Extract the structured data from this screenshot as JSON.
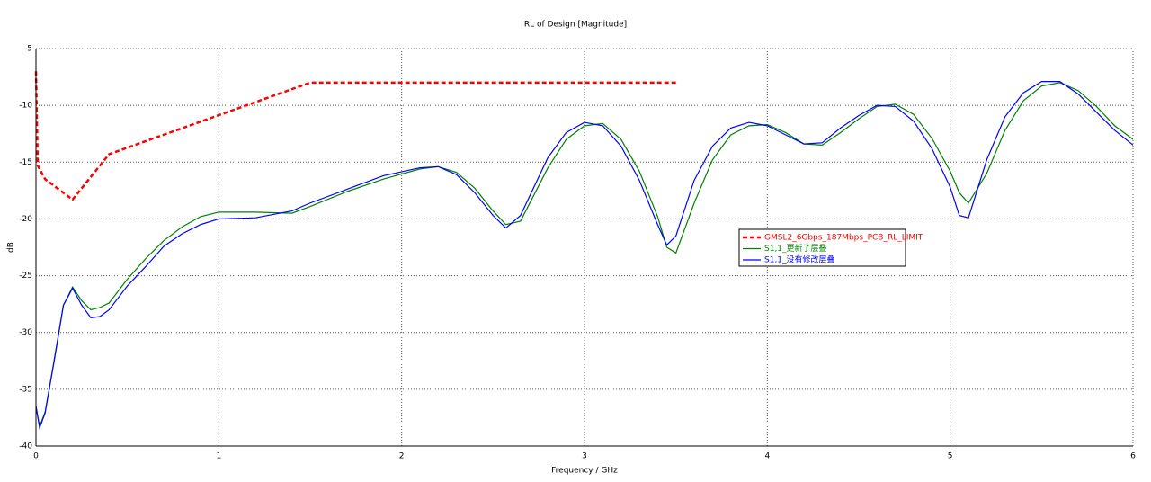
{
  "chart_data": {
    "type": "line",
    "title": "RL of Design [Magnitude]",
    "x_label": "Frequency / GHz",
    "y_label": "dB",
    "x": [
      0,
      0.02,
      0.05,
      0.1,
      0.15,
      0.2,
      0.25,
      0.3,
      0.35,
      0.4,
      0.5,
      0.6,
      0.7,
      0.8,
      0.9,
      1.0,
      1.2,
      1.4,
      1.5,
      1.7,
      1.9,
      2.1,
      2.2,
      2.3,
      2.4,
      2.5,
      2.57,
      2.65,
      2.8,
      2.9,
      3.0,
      3.1,
      3.2,
      3.3,
      3.4,
      3.45,
      3.5,
      3.6,
      3.7,
      3.8,
      3.9,
      4.0,
      4.1,
      4.2,
      4.3,
      4.4,
      4.5,
      4.6,
      4.7,
      4.8,
      4.9,
      5.0,
      5.05,
      5.1,
      5.2,
      5.3,
      5.4,
      5.5,
      5.6,
      5.7,
      5.8,
      5.9,
      6.0
    ],
    "series": [
      {
        "name": "GMSL2_6Gbps_187Mbps_PCB_RL_LIMIT",
        "color": "#ff0000",
        "line_style": "dashed",
        "x": [
          0,
          0.01,
          0.05,
          0.2,
          0.4,
          1.5,
          3.5
        ],
        "values": [
          -7,
          -15.3,
          -16.5,
          -18.3,
          -14.3,
          -8,
          -8
        ]
      },
      {
        "name": "S1,1_更新了层叠",
        "color": "#008000",
        "line_style": "solid",
        "values": [
          -36.5,
          -38.3,
          -37,
          -32.5,
          -27.6,
          -26.0,
          -27.2,
          -28.0,
          -27.8,
          -27.4,
          -25.3,
          -23.5,
          -21.9,
          -20.7,
          -19.8,
          -19.4,
          -19.4,
          -19.5,
          -18.9,
          -17.6,
          -16.5,
          -15.6,
          -15.4,
          -15.9,
          -17.3,
          -19.3,
          -20.5,
          -20.2,
          -15.5,
          -13.0,
          -11.8,
          -11.6,
          -13.0,
          -15.8,
          -19.8,
          -22.5,
          -23.0,
          -18.6,
          -14.8,
          -12.6,
          -11.8,
          -11.7,
          -12.4,
          -13.4,
          -13.5,
          -12.4,
          -11.2,
          -10.1,
          -9.9,
          -10.8,
          -12.9,
          -15.8,
          -17.7,
          -18.6,
          -16.0,
          -12.2,
          -9.6,
          -8.3,
          -8.0,
          -8.7,
          -10.1,
          -11.8,
          -13.0
        ]
      },
      {
        "name": "S1,1_没有修改层叠",
        "color": "#0000ff",
        "line_style": "solid",
        "values": [
          -36.5,
          -38.4,
          -37.1,
          -32.4,
          -27.6,
          -26.1,
          -27.6,
          -28.7,
          -28.6,
          -28.0,
          -25.9,
          -24.2,
          -22.4,
          -21.3,
          -20.5,
          -20.0,
          -19.9,
          -19.3,
          -18.6,
          -17.4,
          -16.2,
          -15.5,
          -15.4,
          -16.1,
          -17.7,
          -19.7,
          -20.8,
          -19.7,
          -14.6,
          -12.4,
          -11.5,
          -11.8,
          -13.6,
          -16.6,
          -20.5,
          -22.3,
          -21.5,
          -16.6,
          -13.6,
          -12.0,
          -11.5,
          -11.8,
          -12.6,
          -13.4,
          -13.3,
          -12.0,
          -10.9,
          -10.0,
          -10.1,
          -11.4,
          -13.8,
          -17.2,
          -19.7,
          -19.9,
          -14.8,
          -11.0,
          -8.9,
          -7.9,
          -7.9,
          -9.0,
          -10.6,
          -12.2,
          -13.5
        ]
      }
    ],
    "xlim": [
      0,
      6
    ],
    "xticks": [
      0,
      1,
      2,
      3,
      4,
      5,
      6
    ],
    "ylim": [
      -40,
      -5
    ],
    "yticks": [
      -40,
      -35,
      -30,
      -25,
      -20,
      -15,
      -10,
      -5
    ],
    "grid": true
  }
}
